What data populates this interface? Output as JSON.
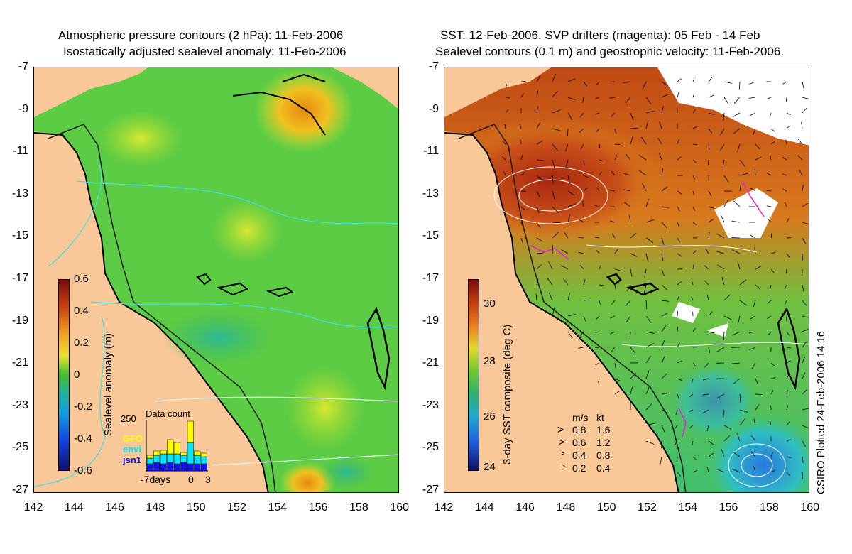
{
  "left_panel": {
    "title_line1": "Atmospheric pressure contours (2 hPa): 11-Feb-2006",
    "title_line2": "Isostatically adjusted sealevel anomaly: 11-Feb-2006",
    "colorbar": {
      "title": "Sealevel anomaly (m)",
      "ticks": [
        "0.6",
        "0.4",
        "0.2",
        "0",
        "-0.2",
        "-0.4",
        "-0.6"
      ]
    },
    "data_count": {
      "title": "Data count",
      "ymax": "250",
      "x_left": "-7days",
      "x_mid": "0",
      "x_right": "3",
      "satellites": [
        {
          "name": "GFO",
          "color": "#ffff00"
        },
        {
          "name": "envi",
          "color": "#00e5ff"
        },
        {
          "name": "jsn1",
          "color": "#1010ff"
        }
      ]
    }
  },
  "right_panel": {
    "title_line1": "SST: 12-Feb-2006. SVP drifters (magenta): 05 Feb - 14 Feb",
    "title_line2": "Sealevel contours (0.1 m) and geostrophic velocity: 11-Feb-2006.",
    "colorbar": {
      "title": "3-day SST composite (deg C)",
      "ticks": [
        "30",
        "28",
        "26",
        "24"
      ]
    },
    "velocity_legend": {
      "header_ms": "m/s",
      "header_kt": "kt",
      "rows": [
        {
          "ms": "0.8",
          "kt": "1.6"
        },
        {
          "ms": "0.6",
          "kt": "1.2"
        },
        {
          "ms": "0.4",
          "kt": "0.8"
        },
        {
          "ms": "0.2",
          "kt": "0.4"
        }
      ]
    }
  },
  "credit": "CSIRO Plotted 24-Feb-2006 14:16",
  "axes": {
    "y_ticks": [
      "-7",
      "-9",
      "-11",
      "-13",
      "-15",
      "-17",
      "-19",
      "-21",
      "-23",
      "-25",
      "-27"
    ],
    "x_ticks": [
      "142",
      "144",
      "146",
      "148",
      "150",
      "152",
      "154",
      "156",
      "158",
      "160"
    ]
  },
  "colors": {
    "land": "#f8c898",
    "ocean_green": "#5ccc44",
    "warm_sst": "#b43a10",
    "drifter": "#e020e0"
  }
}
